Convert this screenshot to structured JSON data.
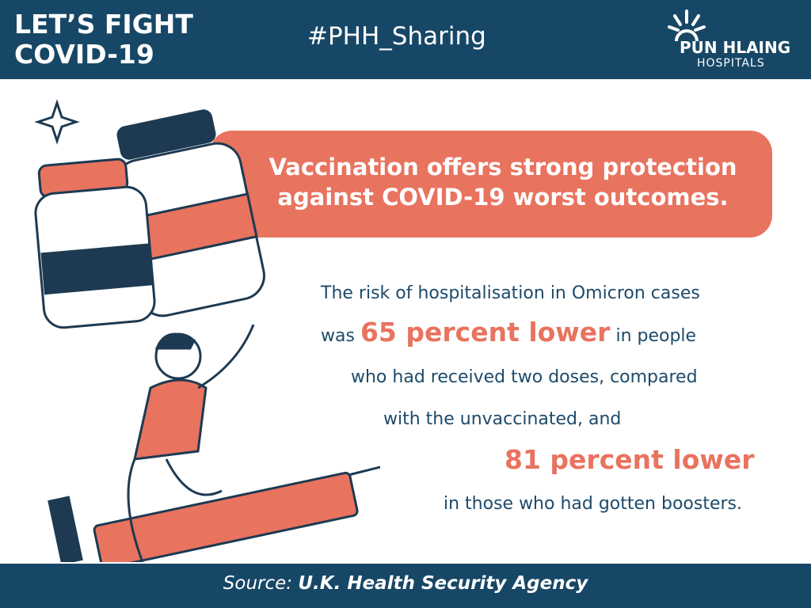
{
  "header": {
    "title_lines": [
      "LET’S FIGHT",
      "COVID-19"
    ],
    "hashtag": "#PHH_Sharing",
    "logo": {
      "name": "PUN HLAING",
      "subtitle": "HOSPITALS"
    }
  },
  "headline": [
    "Vaccination offers strong protection",
    "against COVID-19 worst outcomes."
  ],
  "body": {
    "line1": "The risk of hospitalisation in Omicron cases",
    "line2": {
      "before": "was",
      "highlight": "65 percent lower",
      "after": "in people"
    },
    "line3": "who had received two doses, compared",
    "line4": "with the unvaccinated, and",
    "line5": "81 percent lower",
    "line6": "in those who had gotten boosters."
  },
  "footer": {
    "label": "Source:",
    "source": "U.K. Health Security Agency"
  }
}
